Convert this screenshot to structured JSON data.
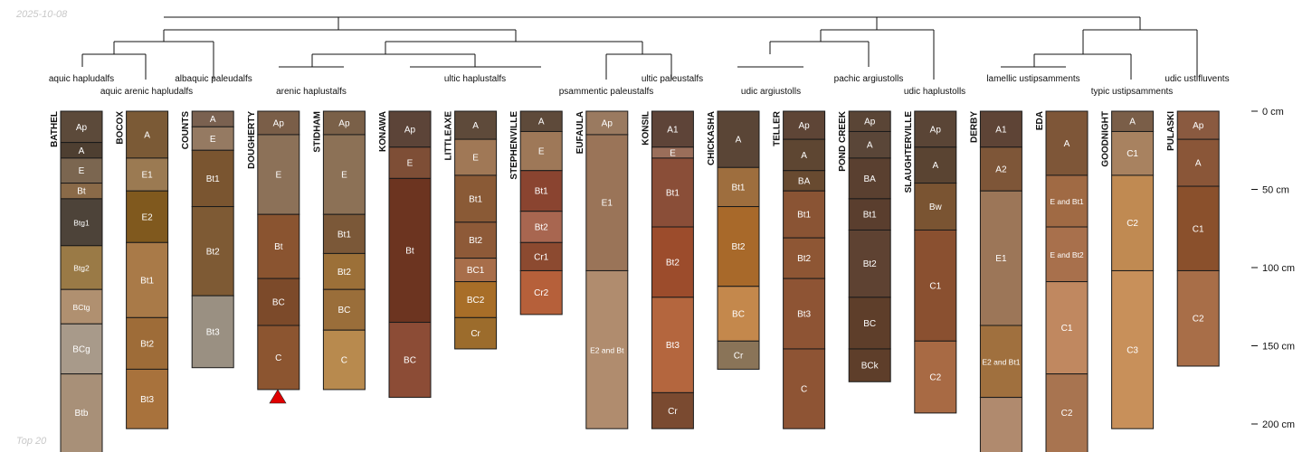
{
  "header": {
    "date": "2025-10-08"
  },
  "footer": {
    "caption": "Top 20"
  },
  "depth_axis": {
    "unit": "cm",
    "ticks": [
      {
        "depth": 0,
        "label": "0 cm"
      },
      {
        "depth": 50,
        "label": "50 cm"
      },
      {
        "depth": 100,
        "label": "100 cm"
      },
      {
        "depth": 150,
        "label": "150 cm"
      },
      {
        "depth": 200,
        "label": "200 cm"
      }
    ]
  },
  "taxa": [
    "aquic hapludalfs",
    "aquic arenic hapludalfs",
    "albaquic paleudalfs",
    "arenic haplustalfs",
    "ultic haplustalfs",
    "ultic paleustalfs",
    "psammentic paleustalfs",
    "udic argiustolls",
    "pachic argiustolls",
    "udic haplustolls",
    "lamellic ustipsamments",
    "typic ustipsamments",
    "udic ustifluvents"
  ],
  "profiles": [
    {
      "name": "BATHEL",
      "horizons": [
        {
          "name": "Ap",
          "top": 0,
          "bottom": 20,
          "color": "#5c4a3a"
        },
        {
          "name": "A",
          "top": 20,
          "bottom": 30,
          "color": "#4e3f31"
        },
        {
          "name": "E",
          "top": 30,
          "bottom": 46,
          "color": "#7b6650"
        },
        {
          "name": "Bt",
          "top": 46,
          "bottom": 56,
          "color": "#8a6a48"
        },
        {
          "name": "Btg1",
          "top": 56,
          "bottom": 86,
          "color": "#4d4339"
        },
        {
          "name": "Btg2",
          "top": 86,
          "bottom": 114,
          "color": "#9a7a46"
        },
        {
          "name": "BCtg",
          "top": 114,
          "bottom": 136,
          "color": "#b09070"
        },
        {
          "name": "BCg",
          "top": 136,
          "bottom": 168,
          "color": "#a89a8a"
        },
        {
          "name": "Btb",
          "top": 168,
          "bottom": 220,
          "color": "#a89078"
        }
      ]
    },
    {
      "name": "BOCOX",
      "horizons": [
        {
          "name": "A",
          "top": 0,
          "bottom": 30,
          "color": "#7b5a36"
        },
        {
          "name": "E1",
          "top": 30,
          "bottom": 51,
          "color": "#9b7a52"
        },
        {
          "name": "E2",
          "top": 51,
          "bottom": 84,
          "color": "#80591e"
        },
        {
          "name": "Bt1",
          "top": 84,
          "bottom": 132,
          "color": "#a97a48"
        },
        {
          "name": "Bt2",
          "top": 132,
          "bottom": 165,
          "color": "#9e6c38"
        },
        {
          "name": "Bt3",
          "top": 165,
          "bottom": 203,
          "color": "#a8723c"
        }
      ]
    },
    {
      "name": "COUNTS",
      "horizons": [
        {
          "name": "A",
          "top": 0,
          "bottom": 10,
          "color": "#7a6150"
        },
        {
          "name": "E",
          "top": 10,
          "bottom": 25,
          "color": "#957a62"
        },
        {
          "name": "Bt1",
          "top": 25,
          "bottom": 61,
          "color": "#7a5530"
        },
        {
          "name": "Bt2",
          "top": 61,
          "bottom": 118,
          "color": "#7e5a34"
        },
        {
          "name": "Bt3",
          "top": 118,
          "bottom": 164,
          "color": "#9a9082"
        }
      ]
    },
    {
      "name": "DOUGHERTY",
      "horizons": [
        {
          "name": "Ap",
          "top": 0,
          "bottom": 15,
          "color": "#7a5e48"
        },
        {
          "name": "E",
          "top": 15,
          "bottom": 66,
          "color": "#8c7158"
        },
        {
          "name": "Bt",
          "top": 66,
          "bottom": 107,
          "color": "#8a5430"
        },
        {
          "name": "BC",
          "top": 107,
          "bottom": 137,
          "color": "#7c4a2a"
        },
        {
          "name": "C",
          "top": 137,
          "bottom": 178,
          "color": "#8c5530"
        }
      ]
    },
    {
      "name": "STIDHAM",
      "horizons": [
        {
          "name": "Ap",
          "top": 0,
          "bottom": 15,
          "color": "#7a6048"
        },
        {
          "name": "E",
          "top": 15,
          "bottom": 66,
          "color": "#8c7156"
        },
        {
          "name": "Bt1",
          "top": 66,
          "bottom": 91,
          "color": "#7b5838"
        },
        {
          "name": "Bt2",
          "top": 91,
          "bottom": 114,
          "color": "#9c7038"
        },
        {
          "name": "BC",
          "top": 114,
          "bottom": 140,
          "color": "#9a6e3a"
        },
        {
          "name": "C",
          "top": 140,
          "bottom": 178,
          "color": "#b88a4e"
        }
      ]
    },
    {
      "name": "KONAWA",
      "horizons": [
        {
          "name": "Ap",
          "top": 0,
          "bottom": 23,
          "color": "#5c4438"
        },
        {
          "name": "E",
          "top": 23,
          "bottom": 43,
          "color": "#7e4e36"
        },
        {
          "name": "Bt",
          "top": 43,
          "bottom": 135,
          "color": "#6c3420"
        },
        {
          "name": "BC",
          "top": 135,
          "bottom": 183,
          "color": "#8c4c36"
        }
      ]
    },
    {
      "name": "LITTLEAXE",
      "horizons": [
        {
          "name": "A",
          "top": 0,
          "bottom": 18,
          "color": "#5e4a3a"
        },
        {
          "name": "E",
          "top": 18,
          "bottom": 41,
          "color": "#a07856"
        },
        {
          "name": "Bt1",
          "top": 41,
          "bottom": 71,
          "color": "#8a5a36"
        },
        {
          "name": "Bt2",
          "top": 71,
          "bottom": 94,
          "color": "#8e5a38"
        },
        {
          "name": "BC1",
          "top": 94,
          "bottom": 109,
          "color": "#a86e4a"
        },
        {
          "name": "BC2",
          "top": 109,
          "bottom": 132,
          "color": "#a86e28"
        },
        {
          "name": "Cr",
          "top": 132,
          "bottom": 152,
          "color": "#9c6c2c"
        }
      ]
    },
    {
      "name": "STEPHENVILLE",
      "horizons": [
        {
          "name": "A",
          "top": 0,
          "bottom": 13,
          "color": "#5e4a3a"
        },
        {
          "name": "E",
          "top": 13,
          "bottom": 38,
          "color": "#9e7858"
        },
        {
          "name": "Bt1",
          "top": 38,
          "bottom": 64,
          "color": "#8a4430"
        },
        {
          "name": "Bt2",
          "top": 64,
          "bottom": 84,
          "color": "#a86650"
        },
        {
          "name": "Cr1",
          "top": 84,
          "bottom": 102,
          "color": "#8c4a30"
        },
        {
          "name": "Cr2",
          "top": 102,
          "bottom": 130,
          "color": "#b6603a"
        }
      ]
    },
    {
      "name": "EUFAULA",
      "horizons": [
        {
          "name": "Ap",
          "top": 0,
          "bottom": 15,
          "color": "#9a7a60"
        },
        {
          "name": "E1",
          "top": 15,
          "bottom": 102,
          "color": "#9a7458"
        },
        {
          "name": "E2 and Bt",
          "top": 102,
          "bottom": 203,
          "color": "#b08c6e"
        }
      ]
    },
    {
      "name": "KONSIL",
      "horizons": [
        {
          "name": "A1",
          "top": 0,
          "bottom": 23,
          "color": "#5e4438"
        },
        {
          "name": "E",
          "top": 23,
          "bottom": 30,
          "color": "#9a6e5a"
        },
        {
          "name": "Bt1",
          "top": 30,
          "bottom": 74,
          "color": "#8a4e38"
        },
        {
          "name": "Bt2",
          "top": 74,
          "bottom": 119,
          "color": "#9c4c2c"
        },
        {
          "name": "Bt3",
          "top": 119,
          "bottom": 180,
          "color": "#b4663e"
        },
        {
          "name": "Cr",
          "top": 180,
          "bottom": 203,
          "color": "#7a4a30"
        }
      ]
    },
    {
      "name": "CHICKASHA",
      "horizons": [
        {
          "name": "A",
          "top": 0,
          "bottom": 36,
          "color": "#5a4536"
        },
        {
          "name": "Bt1",
          "top": 36,
          "bottom": 61,
          "color": "#9e6e3e"
        },
        {
          "name": "Bt2",
          "top": 61,
          "bottom": 112,
          "color": "#a8692a"
        },
        {
          "name": "BC",
          "top": 112,
          "bottom": 147,
          "color": "#c4884c"
        },
        {
          "name": "Cr",
          "top": 147,
          "bottom": 165,
          "color": "#8a7458"
        }
      ]
    },
    {
      "name": "TELLER",
      "horizons": [
        {
          "name": "Ap",
          "top": 0,
          "bottom": 18,
          "color": "#5e4536"
        },
        {
          "name": "A",
          "top": 18,
          "bottom": 38,
          "color": "#5e4632"
        },
        {
          "name": "BA",
          "top": 38,
          "bottom": 51,
          "color": "#684a30"
        },
        {
          "name": "Bt1",
          "top": 51,
          "bottom": 81,
          "color": "#8a5434"
        },
        {
          "name": "Bt2",
          "top": 81,
          "bottom": 107,
          "color": "#8e5634"
        },
        {
          "name": "Bt3",
          "top": 107,
          "bottom": 152,
          "color": "#8e5434"
        },
        {
          "name": "C",
          "top": 152,
          "bottom": 203,
          "color": "#8e5434"
        }
      ]
    },
    {
      "name": "POND CREEK",
      "horizons": [
        {
          "name": "Ap",
          "top": 0,
          "bottom": 13,
          "color": "#5a4536"
        },
        {
          "name": "A",
          "top": 13,
          "bottom": 30,
          "color": "#5a4638"
        },
        {
          "name": "BA",
          "top": 30,
          "bottom": 56,
          "color": "#5a4030"
        },
        {
          "name": "Bt1",
          "top": 56,
          "bottom": 76,
          "color": "#5a3e2e"
        },
        {
          "name": "Bt2",
          "top": 76,
          "bottom": 119,
          "color": "#5e4232"
        },
        {
          "name": "BC",
          "top": 119,
          "bottom": 152,
          "color": "#5e3e2a"
        },
        {
          "name": "BCk",
          "top": 152,
          "bottom": 173,
          "color": "#5e3e2a"
        }
      ]
    },
    {
      "name": "SLAUGHTERVILLE",
      "horizons": [
        {
          "name": "Ap",
          "top": 0,
          "bottom": 23,
          "color": "#5a4536"
        },
        {
          "name": "A",
          "top": 23,
          "bottom": 46,
          "color": "#5a4432"
        },
        {
          "name": "Bw",
          "top": 46,
          "bottom": 76,
          "color": "#7a5432"
        },
        {
          "name": "C1",
          "top": 76,
          "bottom": 147,
          "color": "#8a5030"
        },
        {
          "name": "C2",
          "top": 147,
          "bottom": 193,
          "color": "#a86a44"
        }
      ]
    },
    {
      "name": "DERBY",
      "horizons": [
        {
          "name": "A1",
          "top": 0,
          "bottom": 23,
          "color": "#5e4436"
        },
        {
          "name": "A2",
          "top": 23,
          "bottom": 51,
          "color": "#7e5638"
        },
        {
          "name": "E1",
          "top": 51,
          "bottom": 137,
          "color": "#9c7658"
        },
        {
          "name": "E2 and Bt1",
          "top": 137,
          "bottom": 183,
          "color": "#a0703e"
        },
        {
          "name": "",
          "top": 183,
          "bottom": 220,
          "color": "#b08a6e"
        }
      ]
    },
    {
      "name": "EDA",
      "horizons": [
        {
          "name": "A",
          "top": 0,
          "bottom": 41,
          "color": "#7e5638"
        },
        {
          "name": "E and Bt1",
          "top": 41,
          "bottom": 74,
          "color": "#a06a44"
        },
        {
          "name": "E and Bt2",
          "top": 74,
          "bottom": 109,
          "color": "#a8704c"
        },
        {
          "name": "C1",
          "top": 109,
          "bottom": 168,
          "color": "#c08860"
        },
        {
          "name": "C2",
          "top": 168,
          "bottom": 220,
          "color": "#a87450"
        }
      ]
    },
    {
      "name": "GOODNIGHT",
      "horizons": [
        {
          "name": "A",
          "top": 0,
          "bottom": 13,
          "color": "#7a5e48"
        },
        {
          "name": "C1",
          "top": 13,
          "bottom": 41,
          "color": "#a88260"
        },
        {
          "name": "C2",
          "top": 41,
          "bottom": 102,
          "color": "#c08a52"
        },
        {
          "name": "C3",
          "top": 102,
          "bottom": 203,
          "color": "#c8905a"
        }
      ]
    },
    {
      "name": "PULASKI",
      "horizons": [
        {
          "name": "Ap",
          "top": 0,
          "bottom": 18,
          "color": "#8a5a40"
        },
        {
          "name": "A",
          "top": 18,
          "bottom": 48,
          "color": "#8a5638"
        },
        {
          "name": "C1",
          "top": 48,
          "bottom": 102,
          "color": "#8a502c"
        },
        {
          "name": "C2",
          "top": 102,
          "bottom": 163,
          "color": "#a86e48"
        }
      ]
    }
  ]
}
